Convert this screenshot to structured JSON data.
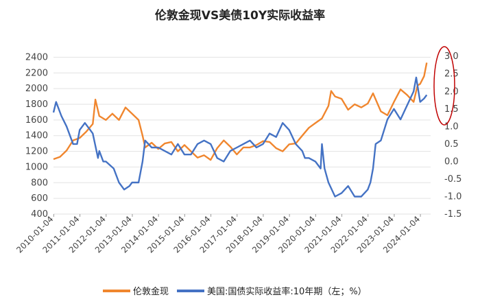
{
  "chart_data": {
    "type": "line",
    "title": "伦敦金现VS美债10Y实际收益率",
    "x_tick_labels": [
      "2010-01-04",
      "2011-01-04",
      "2012-01-04",
      "2013-01-04",
      "2014-01-04",
      "2015-01-04",
      "2016-01-04",
      "2017-01-04",
      "2018-01-04",
      "2019-01-04",
      "2020-01-04",
      "2021-01-04",
      "2022-01-04",
      "2023-01-04",
      "2024-01-04"
    ],
    "y_left": {
      "ticks": [
        400,
        600,
        800,
        1000,
        1200,
        1400,
        1600,
        1800,
        2000,
        2200,
        2400
      ],
      "range": [
        400,
        2500
      ]
    },
    "y_right": {
      "ticks": [
        "-1.5",
        "-1.0",
        "-0.5",
        "0.0",
        "0.5",
        "1.0",
        "1.5",
        "2.0",
        "2.5",
        "3.0"
      ],
      "range": [
        -1.5,
        3.2
      ]
    },
    "grid": "horizontal",
    "legend_position": "bottom",
    "series": [
      {
        "name": "伦敦金现",
        "color": "#F0862E",
        "axis": "left",
        "x": [
          2010.0,
          2010.25,
          2010.5,
          2010.75,
          2011.0,
          2011.25,
          2011.5,
          2011.6,
          2011.75,
          2012.0,
          2012.25,
          2012.5,
          2012.75,
          2013.0,
          2013.25,
          2013.4,
          2013.5,
          2013.75,
          2014.0,
          2014.25,
          2014.5,
          2014.75,
          2015.0,
          2015.25,
          2015.5,
          2015.75,
          2016.0,
          2016.25,
          2016.5,
          2016.75,
          2017.0,
          2017.25,
          2017.5,
          2017.75,
          2018.0,
          2018.25,
          2018.5,
          2018.75,
          2019.0,
          2019.25,
          2019.5,
          2019.75,
          2020.0,
          2020.25,
          2020.5,
          2020.6,
          2020.75,
          2021.0,
          2021.25,
          2021.5,
          2021.75,
          2022.0,
          2022.2,
          2022.5,
          2022.75,
          2023.0,
          2023.25,
          2023.5,
          2023.75,
          2023.9,
          2024.0,
          2024.15,
          2024.25
        ],
        "values": [
          1100,
          1130,
          1210,
          1340,
          1370,
          1450,
          1550,
          1860,
          1650,
          1600,
          1680,
          1600,
          1760,
          1680,
          1600,
          1400,
          1250,
          1310,
          1230,
          1300,
          1320,
          1200,
          1280,
          1200,
          1120,
          1150,
          1090,
          1240,
          1340,
          1260,
          1160,
          1250,
          1250,
          1280,
          1330,
          1320,
          1240,
          1200,
          1290,
          1300,
          1400,
          1500,
          1560,
          1620,
          1780,
          1970,
          1900,
          1870,
          1730,
          1800,
          1760,
          1810,
          1940,
          1710,
          1660,
          1830,
          1990,
          1920,
          1830,
          2040,
          2060,
          2160,
          2330
        ]
      },
      {
        "name": "美国:国债实际收益率:10年期（左；%）",
        "color": "#4472C4",
        "axis": "right",
        "x": [
          2010.0,
          2010.1,
          2010.3,
          2010.5,
          2010.75,
          2010.9,
          2011.0,
          2011.2,
          2011.4,
          2011.5,
          2011.7,
          2011.75,
          2011.9,
          2012.0,
          2012.3,
          2012.5,
          2012.7,
          2012.9,
          2013.0,
          2013.25,
          2013.4,
          2013.5,
          2013.75,
          2014.0,
          2014.25,
          2014.5,
          2014.75,
          2015.0,
          2015.25,
          2015.5,
          2015.75,
          2016.0,
          2016.25,
          2016.5,
          2016.75,
          2017.0,
          2017.25,
          2017.5,
          2017.75,
          2018.0,
          2018.25,
          2018.5,
          2018.75,
          2019.0,
          2019.25,
          2019.5,
          2019.6,
          2019.75,
          2020.0,
          2020.2,
          2020.25,
          2020.35,
          2020.5,
          2020.75,
          2021.0,
          2021.25,
          2021.5,
          2021.75,
          2022.0,
          2022.1,
          2022.2,
          2022.3,
          2022.5,
          2022.75,
          2023.0,
          2023.25,
          2023.5,
          2023.75,
          2023.85,
          2024.0,
          2024.15,
          2024.25
        ],
        "values": [
          1.4,
          1.7,
          1.3,
          1.0,
          0.5,
          0.5,
          0.9,
          1.1,
          0.9,
          0.8,
          0.1,
          0.3,
          0.0,
          0.0,
          -0.2,
          -0.6,
          -0.8,
          -0.7,
          -0.6,
          -0.6,
          0.0,
          0.6,
          0.4,
          0.4,
          0.3,
          0.2,
          0.5,
          0.2,
          0.2,
          0.5,
          0.6,
          0.5,
          0.1,
          0.0,
          0.3,
          0.4,
          0.5,
          0.6,
          0.4,
          0.5,
          0.8,
          0.7,
          1.1,
          0.9,
          0.5,
          0.3,
          0.1,
          0.1,
          0.0,
          -0.2,
          0.5,
          -0.2,
          -0.6,
          -1.0,
          -0.9,
          -0.7,
          -1.0,
          -1.0,
          -0.8,
          -0.6,
          -0.2,
          0.5,
          0.6,
          1.2,
          1.5,
          1.2,
          1.6,
          2.0,
          2.4,
          1.7,
          1.8,
          1.9
        ]
      }
    ]
  }
}
